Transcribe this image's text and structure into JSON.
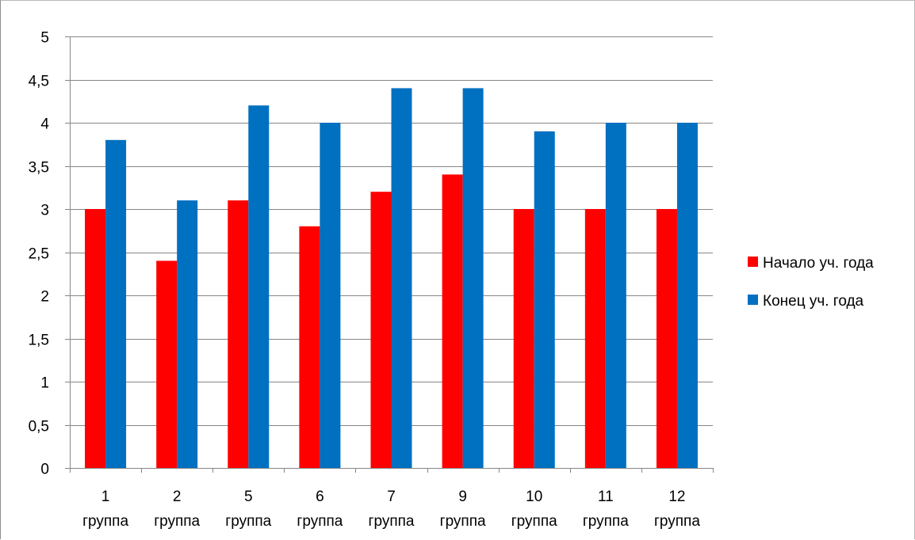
{
  "chart_data": {
    "type": "bar",
    "categories": [
      [
        "1",
        "группа"
      ],
      [
        "2",
        "группа"
      ],
      [
        "5",
        "группа"
      ],
      [
        "6",
        "группа"
      ],
      [
        "7",
        "группа"
      ],
      [
        "9",
        "группа"
      ],
      [
        "10",
        "группа"
      ],
      [
        "11",
        "группа"
      ],
      [
        "12",
        "группа"
      ]
    ],
    "series": [
      {
        "name": "Начало уч. года",
        "color": "#ff0000",
        "values": [
          3.0,
          2.4,
          3.1,
          2.8,
          3.2,
          3.4,
          3.0,
          3.0,
          3.0
        ]
      },
      {
        "name": "Конец уч. года",
        "color": "#0070c0",
        "values": [
          3.8,
          3.1,
          4.2,
          4.0,
          4.4,
          4.4,
          3.9,
          4.0,
          4.0
        ]
      }
    ],
    "ylim": [
      0,
      5
    ],
    "yticks": [
      0,
      0.5,
      1,
      1.5,
      2,
      2.5,
      3,
      3.5,
      4,
      4.5,
      5
    ],
    "ytick_labels": [
      "0",
      "0,5",
      "1",
      "1,5",
      "2",
      "2,5",
      "3",
      "3,5",
      "4",
      "4,5",
      "5"
    ],
    "grid": true,
    "legend_position": "right",
    "title": "",
    "xlabel": "",
    "ylabel": ""
  }
}
